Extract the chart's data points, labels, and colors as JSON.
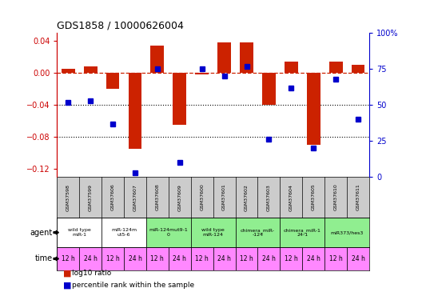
{
  "title": "GDS1858 / 10000626004",
  "samples": [
    "GSM37598",
    "GSM37599",
    "GSM37606",
    "GSM37607",
    "GSM37608",
    "GSM37609",
    "GSM37600",
    "GSM37601",
    "GSM37602",
    "GSM37603",
    "GSM37604",
    "GSM37605",
    "GSM37610",
    "GSM37611"
  ],
  "log10_ratio": [
    0.005,
    0.008,
    -0.02,
    -0.095,
    0.034,
    -0.065,
    -0.002,
    0.038,
    0.038,
    -0.04,
    0.014,
    -0.09,
    0.014,
    0.01
  ],
  "percentile": [
    52,
    53,
    37,
    3,
    75,
    10,
    75,
    70,
    77,
    26,
    62,
    20,
    68,
    40
  ],
  "ylim_left": [
    -0.13,
    0.05
  ],
  "ylim_right": [
    0,
    100
  ],
  "agent_groups": [
    {
      "label": "wild type\nmiR-1",
      "cols": [
        0,
        1
      ],
      "color": "#ffffff"
    },
    {
      "label": "miR-124m\nut5-6",
      "cols": [
        2,
        3
      ],
      "color": "#ffffff"
    },
    {
      "label": "miR-124mut9-1\n0",
      "cols": [
        4,
        5
      ],
      "color": "#90ee90"
    },
    {
      "label": "wild type\nmiR-124",
      "cols": [
        6,
        7
      ],
      "color": "#90ee90"
    },
    {
      "label": "chimera_miR-\n-124",
      "cols": [
        8,
        9
      ],
      "color": "#90ee90"
    },
    {
      "label": "chimera_miR-1\n24-1",
      "cols": [
        10,
        11
      ],
      "color": "#90ee90"
    },
    {
      "label": "miR373/hes3",
      "cols": [
        12,
        13
      ],
      "color": "#90ee90"
    }
  ],
  "time_labels": [
    "12 h",
    "24 h",
    "12 h",
    "24 h",
    "12 h",
    "24 h",
    "12 h",
    "24 h",
    "12 h",
    "24 h",
    "12 h",
    "24 h",
    "12 h",
    "24 h"
  ],
  "bar_color": "#cc2200",
  "dot_color": "#0000cc",
  "dashed_color": "#cc2200",
  "bg_color": "#ffffff",
  "time_bg_color": "#ff88ff",
  "sample_bg_color": "#cccccc",
  "left_axis_color": "#cc0000",
  "right_axis_color": "#0000cc"
}
